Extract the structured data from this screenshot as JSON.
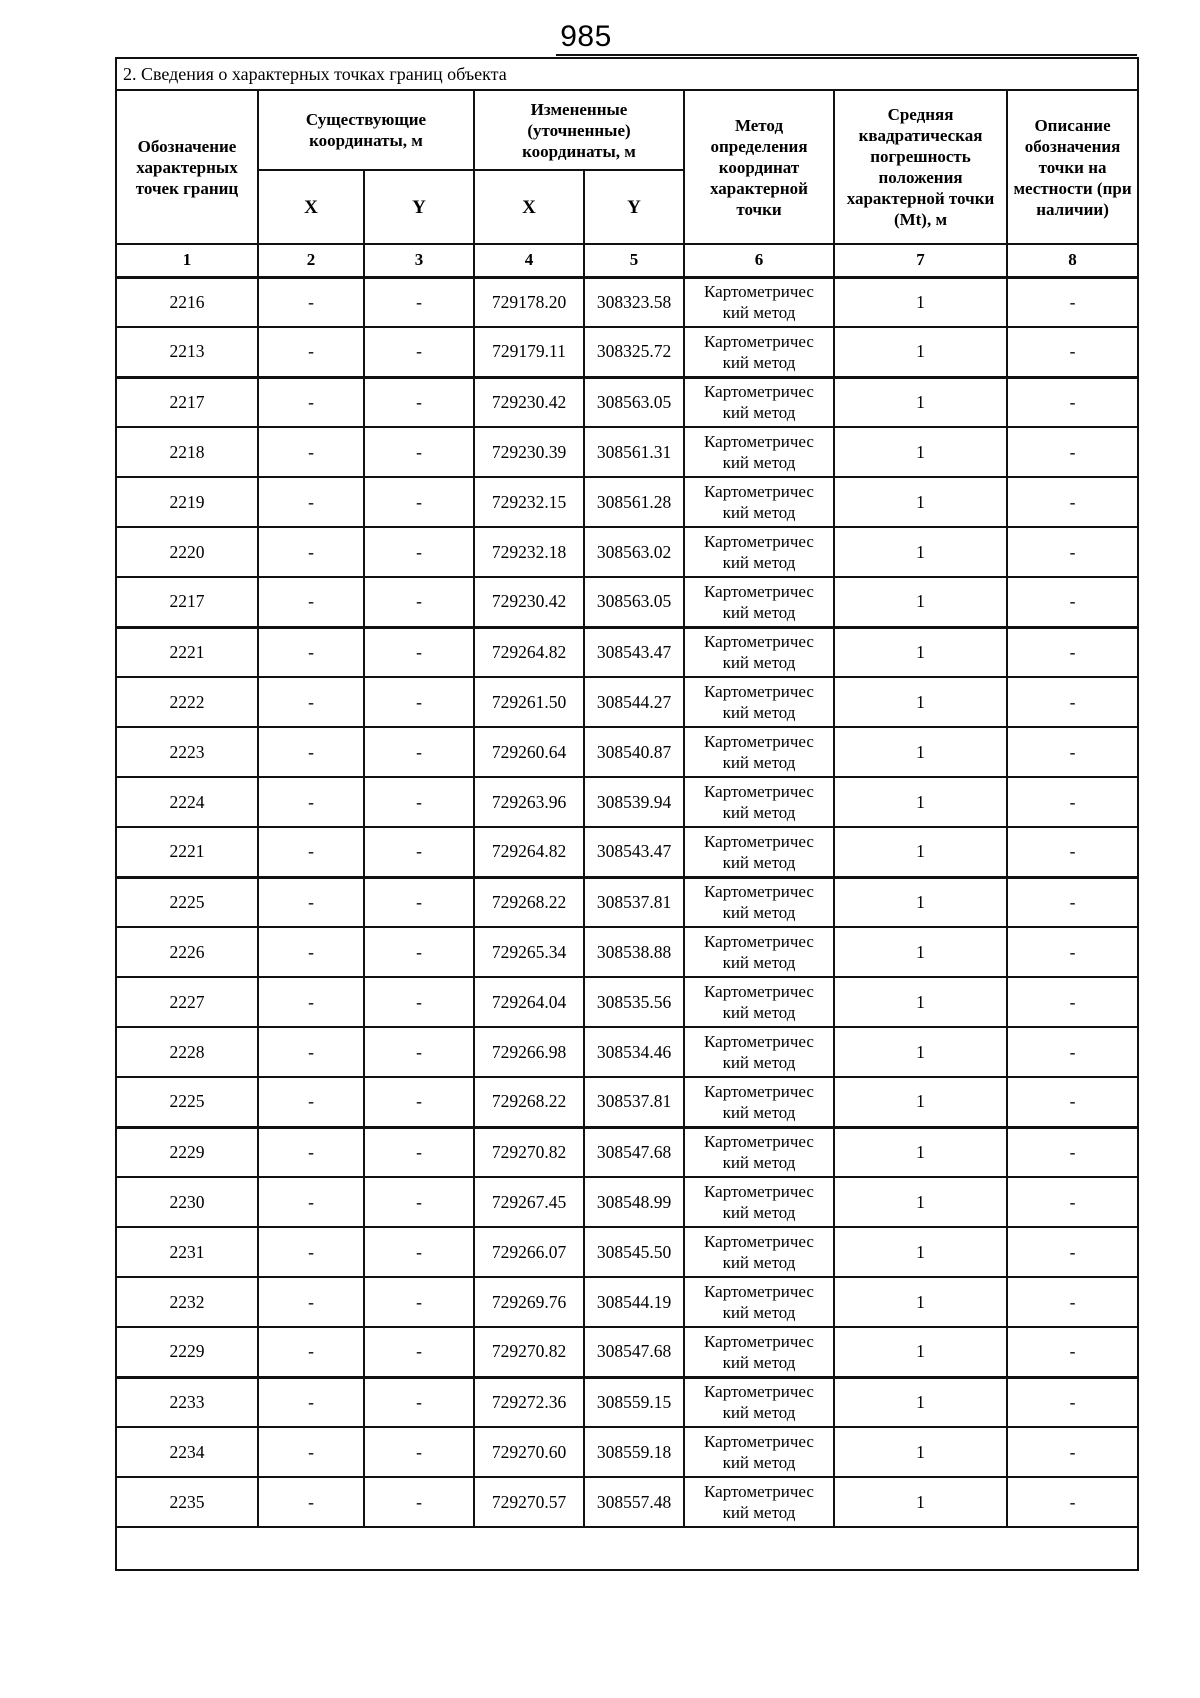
{
  "page_number": "985",
  "section_title": "2. Сведения о характерных точках границ объекта",
  "table": {
    "headers": {
      "point_label": "Обозначение характерных точек границ",
      "existing_coords": "Существующие координаты, м",
      "changed_coords": "Измененные (уточненные) координаты, м",
      "x": "X",
      "y": "Y",
      "method": "Метод определения координат характерной точки",
      "mt": "Средняя квадратическая погрешность положения характерной точки (Mt), м",
      "description": "Описание обозначения точки на местности (при наличии)"
    },
    "column_numbers": [
      "1",
      "2",
      "3",
      "4",
      "5",
      "6",
      "7",
      "8"
    ],
    "rows": [
      {
        "point": "2216",
        "x_existing": "-",
        "y_existing": "-",
        "x_new": "729178.20",
        "y_new": "308323.58",
        "method": "Картометричес\nкий метод",
        "mt": "1",
        "description": "-",
        "contour_end": false
      },
      {
        "point": "2213",
        "x_existing": "-",
        "y_existing": "-",
        "x_new": "729179.11",
        "y_new": "308325.72",
        "method": "Картометричес\nкий метод",
        "mt": "1",
        "description": "-",
        "contour_end": true
      },
      {
        "point": "2217",
        "x_existing": "-",
        "y_existing": "-",
        "x_new": "729230.42",
        "y_new": "308563.05",
        "method": "Картометричес\nкий метод",
        "mt": "1",
        "description": "-",
        "contour_end": false
      },
      {
        "point": "2218",
        "x_existing": "-",
        "y_existing": "-",
        "x_new": "729230.39",
        "y_new": "308561.31",
        "method": "Картометричес\nкий метод",
        "mt": "1",
        "description": "-",
        "contour_end": false
      },
      {
        "point": "2219",
        "x_existing": "-",
        "y_existing": "-",
        "x_new": "729232.15",
        "y_new": "308561.28",
        "method": "Картометричес\nкий метод",
        "mt": "1",
        "description": "-",
        "contour_end": false
      },
      {
        "point": "2220",
        "x_existing": "-",
        "y_existing": "-",
        "x_new": "729232.18",
        "y_new": "308563.02",
        "method": "Картометричес\nкий метод",
        "mt": "1",
        "description": "-",
        "contour_end": false
      },
      {
        "point": "2217",
        "x_existing": "-",
        "y_existing": "-",
        "x_new": "729230.42",
        "y_new": "308563.05",
        "method": "Картометричес\nкий метод",
        "mt": "1",
        "description": "-",
        "contour_end": true
      },
      {
        "point": "2221",
        "x_existing": "-",
        "y_existing": "-",
        "x_new": "729264.82",
        "y_new": "308543.47",
        "method": "Картометричес\nкий метод",
        "mt": "1",
        "description": "-",
        "contour_end": false
      },
      {
        "point": "2222",
        "x_existing": "-",
        "y_existing": "-",
        "x_new": "729261.50",
        "y_new": "308544.27",
        "method": "Картометричес\nкий метод",
        "mt": "1",
        "description": "-",
        "contour_end": false
      },
      {
        "point": "2223",
        "x_existing": "-",
        "y_existing": "-",
        "x_new": "729260.64",
        "y_new": "308540.87",
        "method": "Картометричес\nкий метод",
        "mt": "1",
        "description": "-",
        "contour_end": false
      },
      {
        "point": "2224",
        "x_existing": "-",
        "y_existing": "-",
        "x_new": "729263.96",
        "y_new": "308539.94",
        "method": "Картометричес\nкий метод",
        "mt": "1",
        "description": "-",
        "contour_end": false
      },
      {
        "point": "2221",
        "x_existing": "-",
        "y_existing": "-",
        "x_new": "729264.82",
        "y_new": "308543.47",
        "method": "Картометричес\nкий метод",
        "mt": "1",
        "description": "-",
        "contour_end": true
      },
      {
        "point": "2225",
        "x_existing": "-",
        "y_existing": "-",
        "x_new": "729268.22",
        "y_new": "308537.81",
        "method": "Картометричес\nкий метод",
        "mt": "1",
        "description": "-",
        "contour_end": false
      },
      {
        "point": "2226",
        "x_existing": "-",
        "y_existing": "-",
        "x_new": "729265.34",
        "y_new": "308538.88",
        "method": "Картометричес\nкий метод",
        "mt": "1",
        "description": "-",
        "contour_end": false
      },
      {
        "point": "2227",
        "x_existing": "-",
        "y_existing": "-",
        "x_new": "729264.04",
        "y_new": "308535.56",
        "method": "Картометричес\nкий метод",
        "mt": "1",
        "description": "-",
        "contour_end": false
      },
      {
        "point": "2228",
        "x_existing": "-",
        "y_existing": "-",
        "x_new": "729266.98",
        "y_new": "308534.46",
        "method": "Картометричес\nкий метод",
        "mt": "1",
        "description": "-",
        "contour_end": false
      },
      {
        "point": "2225",
        "x_existing": "-",
        "y_existing": "-",
        "x_new": "729268.22",
        "y_new": "308537.81",
        "method": "Картометричес\nкий метод",
        "mt": "1",
        "description": "-",
        "contour_end": true
      },
      {
        "point": "2229",
        "x_existing": "-",
        "y_existing": "-",
        "x_new": "729270.82",
        "y_new": "308547.68",
        "method": "Картометричес\nкий метод",
        "mt": "1",
        "description": "-",
        "contour_end": false
      },
      {
        "point": "2230",
        "x_existing": "-",
        "y_existing": "-",
        "x_new": "729267.45",
        "y_new": "308548.99",
        "method": "Картометричес\nкий метод",
        "mt": "1",
        "description": "-",
        "contour_end": false
      },
      {
        "point": "2231",
        "x_existing": "-",
        "y_existing": "-",
        "x_new": "729266.07",
        "y_new": "308545.50",
        "method": "Картометричес\nкий метод",
        "mt": "1",
        "description": "-",
        "contour_end": false
      },
      {
        "point": "2232",
        "x_existing": "-",
        "y_existing": "-",
        "x_new": "729269.76",
        "y_new": "308544.19",
        "method": "Картометричес\nкий метод",
        "mt": "1",
        "description": "-",
        "contour_end": false
      },
      {
        "point": "2229",
        "x_existing": "-",
        "y_existing": "-",
        "x_new": "729270.82",
        "y_new": "308547.68",
        "method": "Картометричес\nкий метод",
        "mt": "1",
        "description": "-",
        "contour_end": true
      },
      {
        "point": "2233",
        "x_existing": "-",
        "y_existing": "-",
        "x_new": "729272.36",
        "y_new": "308559.15",
        "method": "Картометричес\nкий метод",
        "mt": "1",
        "description": "-",
        "contour_end": false
      },
      {
        "point": "2234",
        "x_existing": "-",
        "y_existing": "-",
        "x_new": "729270.60",
        "y_new": "308559.18",
        "method": "Картометричес\nкий метод",
        "mt": "1",
        "description": "-",
        "contour_end": false
      },
      {
        "point": "2235",
        "x_existing": "-",
        "y_existing": "-",
        "x_new": "729270.57",
        "y_new": "308557.48",
        "method": "Картометричес\nкий метод",
        "mt": "1",
        "description": "-",
        "contour_end": false
      }
    ]
  }
}
